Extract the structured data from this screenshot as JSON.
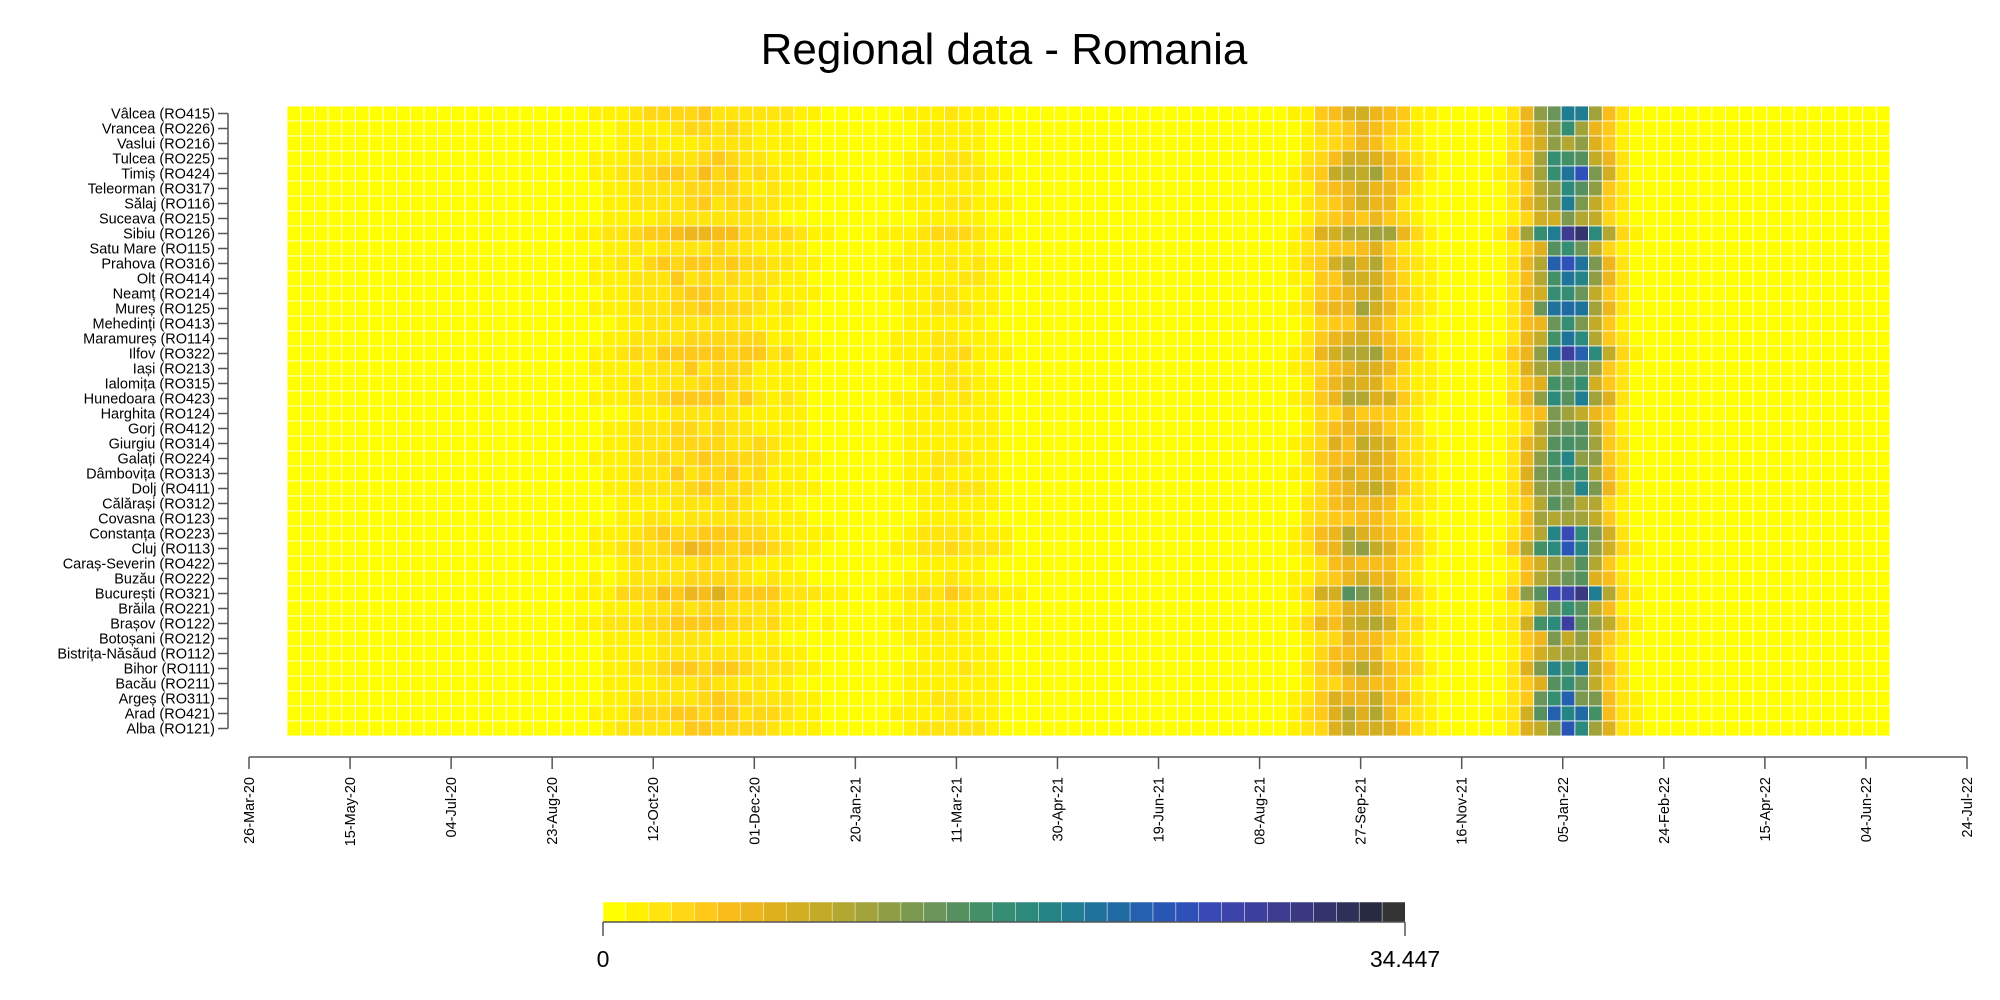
{
  "chart_data": {
    "type": "heatmap",
    "title": "Regional data - Romania",
    "x_start_date": "2020-03-26",
    "x_end_date": "2022-07-24",
    "x_tick_labels": [
      "26-Mar-20",
      "15-May-20",
      "04-Jul-20",
      "23-Aug-20",
      "12-Oct-20",
      "01-Dec-20",
      "20-Jan-21",
      "11-Mar-21",
      "30-Apr-21",
      "19-Jun-21",
      "08-Aug-21",
      "27-Sep-21",
      "16-Nov-21",
      "05-Jan-22",
      "24-Feb-22",
      "15-Apr-22",
      "04-Jun-22",
      "24-Jul-22"
    ],
    "data_start_date": "2020-04-23",
    "n_weeks": 117,
    "regions": [
      "Vâlcea (RO415)",
      "Vrancea (RO226)",
      "Vaslui (RO216)",
      "Tulcea (RO225)",
      "Timiș (RO424)",
      "Teleorman (RO317)",
      "Sălaj (RO116)",
      "Suceava (RO215)",
      "Sibiu (RO126)",
      "Satu Mare (RO115)",
      "Prahova (RO316)",
      "Olt (RO414)",
      "Neamț (RO214)",
      "Mureș (RO125)",
      "Mehedinți (RO413)",
      "Maramureș (RO114)",
      "Ilfov (RO322)",
      "Iași (RO213)",
      "Ialomița (RO315)",
      "Hunedoara (RO423)",
      "Harghita (RO124)",
      "Gorj (RO412)",
      "Giurgiu (RO314)",
      "Galați (RO224)",
      "Dâmbovița (RO313)",
      "Dolj (RO411)",
      "Călărași (RO312)",
      "Covasna (RO123)",
      "Constanța (RO223)",
      "Cluj (RO113)",
      "Caraș-Severin (RO422)",
      "Buzău (RO222)",
      "București (RO321)",
      "Brăila (RO221)",
      "Brașov (RO122)",
      "Botoșani (RO212)",
      "Bistrița-Năsăud (RO112)",
      "Bihor (RO111)",
      "Bacău (RO211)",
      "Argeș (RO311)",
      "Arad (RO421)",
      "Alba (RO121)"
    ],
    "region_intensity": [
      1.0,
      0.8,
      0.7,
      1.0,
      1.3,
      0.9,
      1.0,
      0.7,
      1.6,
      0.8,
      1.2,
      1.0,
      1.0,
      1.1,
      0.8,
      1.0,
      1.4,
      1.0,
      0.9,
      1.1,
      0.7,
      0.8,
      1.0,
      1.0,
      1.0,
      1.0,
      0.8,
      0.8,
      1.2,
      1.4,
      0.8,
      0.9,
      1.8,
      0.8,
      1.3,
      0.7,
      0.8,
      1.1,
      0.8,
      1.1,
      1.2,
      1.1
    ],
    "wave_profile": {
      "waves": [
        {
          "peak": "2020-11-19",
          "width_weeks": 5,
          "value": 3.5
        },
        {
          "peak": "2021-03-25",
          "width_weeks": 3,
          "value": 2.0
        },
        {
          "peak": "2021-10-21",
          "width_weeks": 2.5,
          "value": 8.0
        },
        {
          "peak": "2022-02-03",
          "width_weeks": 2,
          "value": 18.0
        }
      ]
    },
    "scale_min": 0,
    "scale_max": 34.447,
    "colorbar_labels": [
      "0",
      "34.447"
    ],
    "palette": [
      "#ffff00",
      "#fff100",
      "#ffe40d",
      "#ffd715",
      "#ffc919",
      "#f8bd1a",
      "#ecb61c",
      "#dfb01e",
      "#d2ae21",
      "#c2ab27",
      "#b2a730",
      "#a1a23a",
      "#8f9d45",
      "#7c984f",
      "#6a9458",
      "#56905f",
      "#449066",
      "#358e71",
      "#2b8a7c",
      "#258486",
      "#207c90",
      "#1f739a",
      "#206aa4",
      "#2460ad",
      "#2956b5",
      "#3050b9",
      "#3849b5",
      "#3c44ab",
      "#3d3f9e",
      "#3c3b8f",
      "#393880",
      "#33346d",
      "#2d3059",
      "#282a42",
      "#333333"
    ]
  }
}
